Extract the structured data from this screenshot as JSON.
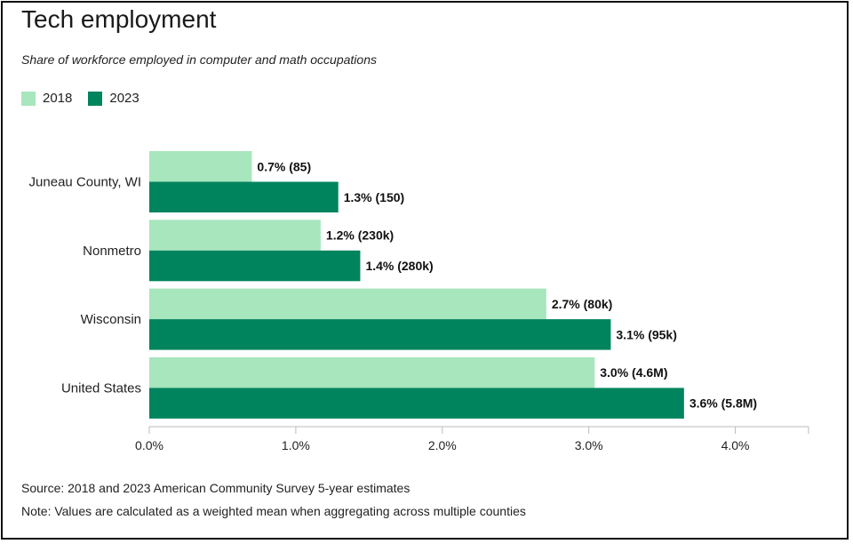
{
  "chart_data": {
    "type": "bar",
    "orientation": "horizontal",
    "title": "Tech employment",
    "subtitle": "Share of workforce employed in computer and math occupations",
    "categories": [
      "Juneau County, WI",
      "Nonmetro",
      "Wisconsin",
      "United States"
    ],
    "series": [
      {
        "name": "2018",
        "color": "#a8e6bd",
        "values": [
          0.7,
          1.17,
          2.71,
          3.04
        ],
        "labels": [
          "0.7% (85)",
          "1.2% (230k)",
          "2.7% (80k)",
          "3.0% (4.6M)"
        ]
      },
      {
        "name": "2023",
        "color": "#00845e",
        "values": [
          1.29,
          1.44,
          3.15,
          3.65
        ],
        "labels": [
          "1.3% (150)",
          "1.4% (280k)",
          "3.1% (95k)",
          "3.6% (5.8M)"
        ]
      }
    ],
    "xlim": [
      0,
      4.5
    ],
    "xticks": [
      0,
      1,
      2,
      3,
      4
    ],
    "xtick_labels": [
      "0.0%",
      "1.0%",
      "2.0%",
      "3.0%",
      "4.0%"
    ],
    "legend_position": "top-left",
    "grid": false
  },
  "footer": {
    "source": "Source: 2018 and 2023 American Community Survey 5-year estimates",
    "note": "Note: Values are calculated as a weighted mean when aggregating across multiple counties"
  }
}
